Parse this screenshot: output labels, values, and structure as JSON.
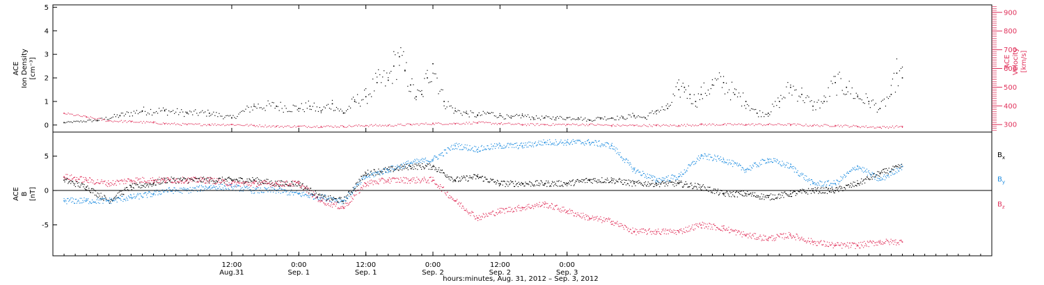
{
  "chart_data": [
    {
      "type": "scatter",
      "panel": "top",
      "ylabel": [
        "ACE",
        "Ion Density",
        "[cm⁻³]"
      ],
      "ylabel_right": [
        "ACE",
        "Velocity",
        "[km/s]"
      ],
      "ylim": [
        -0.3,
        5.1
      ],
      "yticks": [
        0,
        1,
        2,
        3,
        4,
        5
      ],
      "ylim_right": [
        260,
        940
      ],
      "yticks_right": [
        300,
        400,
        500,
        600,
        700,
        800,
        900
      ],
      "series": [
        {
          "color": "#000000",
          "axis": "left",
          "x": [
            -18,
            -12,
            -8,
            -4,
            0,
            4,
            8,
            12,
            16,
            20,
            24,
            26,
            28,
            30,
            32,
            34,
            36,
            38,
            40,
            41,
            42,
            43,
            44,
            45,
            46,
            47,
            48,
            50,
            52,
            54,
            56,
            58,
            60,
            62,
            64,
            66,
            68,
            70,
            72,
            74,
            76,
            78,
            80,
            82,
            84,
            86,
            88,
            90,
            92,
            93,
            94,
            95,
            96,
            98,
            100,
            102,
            104,
            106,
            108,
            110,
            112,
            114,
            116,
            118,
            120,
            122,
            124,
            126,
            128,
            130,
            131,
            132
          ],
          "y": [
            0.1,
            0.2,
            0.4,
            0.6,
            0.6,
            0.5,
            0.5,
            0.3,
            0.8,
            0.8,
            0.7,
            0.8,
            0.6,
            0.9,
            0.5,
            1.0,
            1.2,
            1.8,
            1.9,
            2.5,
            2.9,
            2.3,
            1.7,
            1.2,
            1.3,
            2.0,
            2.6,
            1.0,
            0.6,
            0.5,
            0.4,
            0.5,
            0.4,
            0.3,
            0.4,
            0.3,
            0.3,
            0.3,
            0.3,
            0.3,
            0.2,
            0.3,
            0.3,
            0.3,
            0.4,
            0.3,
            0.6,
            0.7,
            1.5,
            1.6,
            1.3,
            1.0,
            1.3,
            1.7,
            1.8,
            1.3,
            1.0,
            0.5,
            0.5,
            1.0,
            1.6,
            1.3,
            0.8,
            1.0,
            1.8,
            1.6,
            1.2,
            1.0,
            0.7,
            1.3,
            2.2,
            2.0
          ]
        },
        {
          "color": "#e0305a",
          "axis": "right",
          "x": [
            -18,
            -14,
            -10,
            -6,
            -2,
            0,
            4,
            8,
            12,
            16,
            20,
            24,
            28,
            32,
            36,
            40,
            44,
            48,
            52,
            56,
            60,
            64,
            68,
            72,
            76,
            80,
            84,
            88,
            92,
            96,
            100,
            104,
            108,
            112,
            116,
            120,
            124,
            128,
            132
          ],
          "y": [
            360,
            340,
            320,
            315,
            310,
            305,
            300,
            300,
            300,
            295,
            290,
            290,
            290,
            290,
            295,
            295,
            300,
            305,
            305,
            310,
            305,
            300,
            300,
            300,
            300,
            295,
            295,
            295,
            295,
            300,
            300,
            300,
            300,
            300,
            295,
            295,
            290,
            285,
            290
          ]
        }
      ]
    },
    {
      "type": "scatter",
      "panel": "bottom",
      "ylabel": [
        "ACE",
        "B",
        "[nT]"
      ],
      "ylim": [
        -9.5,
        8.5
      ],
      "yticks": [
        -5,
        0,
        5
      ],
      "legend": [
        "B",
        "B",
        "B"
      ],
      "legend_subscripts": [
        "x",
        "y",
        "z"
      ],
      "legend_position": "right",
      "series": [
        {
          "name": "Bx",
          "color": "#000000",
          "x": [
            -18,
            -14,
            -10,
            -6,
            -2,
            0,
            4,
            8,
            12,
            16,
            20,
            24,
            28,
            32,
            36,
            40,
            44,
            48,
            52,
            56,
            60,
            64,
            68,
            72,
            76,
            80,
            84,
            88,
            92,
            96,
            100,
            104,
            108,
            112,
            116,
            120,
            124,
            128,
            132
          ],
          "y": [
            1.5,
            0.5,
            -1.5,
            0.5,
            1.0,
            1.5,
            1.5,
            1.5,
            1.5,
            1.5,
            1.0,
            1.0,
            -1.0,
            -1.5,
            2.5,
            3.0,
            3.5,
            3.5,
            1.5,
            2.0,
            1.0,
            1.0,
            1.0,
            1.0,
            1.5,
            1.5,
            1.0,
            1.0,
            1.0,
            0.5,
            -0.5,
            -0.5,
            -1.0,
            -0.5,
            0.0,
            0.0,
            1.0,
            2.5,
            3.5
          ]
        },
        {
          "name": "By",
          "color": "#1f8de0",
          "x": [
            -18,
            -14,
            -10,
            -6,
            -2,
            0,
            4,
            8,
            12,
            16,
            20,
            24,
            28,
            32,
            36,
            40,
            44,
            48,
            52,
            56,
            60,
            64,
            68,
            72,
            76,
            80,
            84,
            88,
            92,
            96,
            100,
            104,
            108,
            112,
            116,
            120,
            124,
            128,
            132
          ],
          "y": [
            -1.5,
            -1.5,
            -1.5,
            -1.0,
            -0.5,
            0.0,
            0.0,
            0.5,
            0.5,
            0.0,
            0.0,
            -0.5,
            -1.0,
            -1.5,
            2.0,
            3.0,
            4.0,
            4.5,
            6.5,
            6.0,
            6.5,
            6.5,
            7.0,
            7.0,
            7.0,
            6.5,
            3.0,
            1.5,
            2.0,
            5.0,
            4.5,
            3.0,
            4.5,
            3.5,
            1.0,
            1.0,
            3.5,
            1.5,
            3.5
          ]
        },
        {
          "name": "Bz",
          "color": "#e0305a",
          "x": [
            -18,
            -14,
            -10,
            -6,
            -2,
            0,
            4,
            8,
            12,
            16,
            20,
            24,
            28,
            32,
            36,
            40,
            44,
            48,
            52,
            56,
            60,
            64,
            68,
            72,
            76,
            80,
            84,
            88,
            92,
            96,
            100,
            104,
            108,
            112,
            116,
            120,
            124,
            128,
            132
          ],
          "y": [
            2.0,
            1.5,
            1.0,
            1.5,
            1.5,
            1.5,
            1.5,
            1.5,
            1.0,
            1.0,
            1.0,
            1.0,
            -1.5,
            -2.5,
            1.0,
            1.5,
            1.5,
            1.5,
            -1.5,
            -4.0,
            -3.0,
            -2.5,
            -2.0,
            -3.0,
            -4.0,
            -4.5,
            -6.0,
            -6.0,
            -6.0,
            -5.0,
            -5.5,
            -6.5,
            -7.0,
            -6.5,
            -7.5,
            -8.0,
            -8.0,
            -7.5,
            -7.5
          ]
        }
      ]
    }
  ],
  "x_axis": {
    "xlim": [
      -20,
      148
    ],
    "ticks": [
      {
        "h": 12,
        "time": "12:00",
        "day": "Aug.31"
      },
      {
        "h": 24,
        "time": "0:00",
        "day": "Sep. 1"
      },
      {
        "h": 36,
        "time": "12:00",
        "day": "Sep. 1"
      },
      {
        "h": 48,
        "time": "0:00",
        "day": "Sep. 2"
      },
      {
        "h": 60,
        "time": "12:00",
        "day": "Sep. 2"
      },
      {
        "h": 72,
        "time": "0:00",
        "day": "Sep. 3"
      }
    ],
    "label": "hours:minutes, Aug. 31, 2012 – Sep.  3, 2012"
  }
}
